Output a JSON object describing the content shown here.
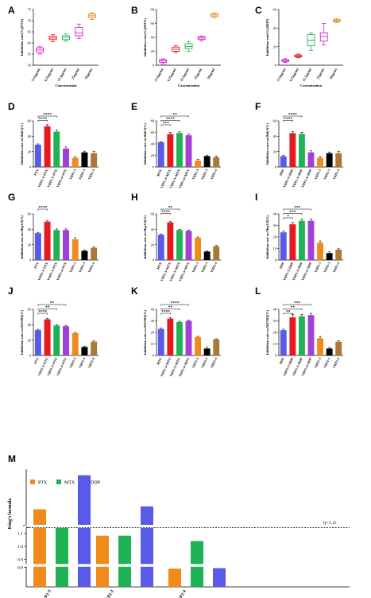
{
  "colors": {
    "orange": "#f08a1a",
    "green": "#1fb356",
    "blue": "#5a5ae8",
    "red": "#e8191d",
    "purple": "#a13fd6",
    "black": "#000000",
    "brown": "#a87a35",
    "magenta": "#d61fd6",
    "tan": "#e08a1f"
  },
  "panel_letters": [
    "A",
    "B",
    "C",
    "D",
    "E",
    "F",
    "G",
    "H",
    "I",
    "J",
    "K",
    "L",
    "M"
  ],
  "chart_data": [
    {
      "panel": "A",
      "type": "box",
      "categories": [
        "3.13μg/mL",
        "6.25μg/mL",
        "12.5μg/mL",
        "25μg/mL",
        "50μg/mL"
      ],
      "ylabel": "Inhibition rate(%)(PTX)",
      "xlabel": "Concentration",
      "ylim": [
        50,
        75
      ],
      "yticks": [
        50,
        55,
        60,
        65,
        70,
        75
      ],
      "boxes": [
        {
          "min": 55.0,
          "q1": 55.8,
          "median": 56.8,
          "q3": 57.8,
          "max": 58.3
        },
        {
          "min": 60.5,
          "q1": 61.5,
          "median": 62.2,
          "q3": 63.0,
          "max": 63.8
        },
        {
          "min": 60.8,
          "q1": 61.5,
          "median": 62.5,
          "q3": 63.2,
          "max": 64.0
        },
        {
          "min": 62.0,
          "q1": 63.2,
          "median": 64.5,
          "q3": 67.0,
          "max": 68.5
        },
        {
          "min": 70.5,
          "q1": 71.5,
          "median": 72.2,
          "q3": 73.0,
          "max": 73.5
        }
      ]
    },
    {
      "panel": "B",
      "type": "box",
      "categories": [
        "3.13μg/mL",
        "6.25μg/mL",
        "12.5μg/mL",
        "25μg/mL",
        "50μg/mL"
      ],
      "ylabel": "Inhibition rate(%)(MTX)",
      "xlabel": "Concentration",
      "ylim": [
        0,
        80
      ],
      "yticks": [
        0,
        20,
        40,
        60,
        80
      ],
      "boxes": [
        {
          "min": 2,
          "q1": 4,
          "median": 6,
          "q3": 8,
          "max": 9
        },
        {
          "min": 18,
          "q1": 20,
          "median": 23,
          "q3": 26,
          "max": 28
        },
        {
          "min": 20,
          "q1": 24,
          "median": 27,
          "q3": 31,
          "max": 34
        },
        {
          "min": 35,
          "q1": 37,
          "median": 39,
          "q3": 41,
          "max": 42
        },
        {
          "min": 68,
          "q1": 70,
          "median": 72,
          "q3": 74,
          "max": 75
        }
      ]
    },
    {
      "panel": "C",
      "type": "box",
      "categories": [
        "3.13μg/mL",
        "6.25μg/mL",
        "12.5μg/mL",
        "25μg/mL",
        "50μg/mL"
      ],
      "ylabel": "Inhibition rate(%)(DDP)",
      "xlabel": "Concentration",
      "ylim": [
        0,
        60
      ],
      "yticks": [
        0,
        20,
        40,
        60
      ],
      "boxes": [
        {
          "min": 3,
          "q1": 4,
          "median": 5,
          "q3": 6,
          "max": 7
        },
        {
          "min": 8,
          "q1": 9,
          "median": 10,
          "q3": 11,
          "max": 12
        },
        {
          "min": 16,
          "q1": 21,
          "median": 27,
          "q3": 33,
          "max": 35
        },
        {
          "min": 22,
          "q1": 26,
          "median": 31,
          "q3": 35,
          "max": 45
        },
        {
          "min": 46,
          "q1": 47,
          "median": 48,
          "q3": 49,
          "max": 50
        }
      ]
    },
    {
      "panel": "D",
      "type": "bar",
      "categories": [
        "PTX",
        "VRP2-3+PTX",
        "VRP2-3+PTX",
        "VRP2-4+PTX",
        "VRP2-3",
        "VRP2-3",
        "VRP2-4"
      ],
      "values": [
        29,
        53,
        46,
        24,
        12,
        19,
        18
      ],
      "errors": [
        1,
        2,
        2,
        2,
        1.5,
        1.5,
        2
      ],
      "ylabel": "Inhibition rate on Huh7(%)",
      "ylim": [
        0,
        60
      ],
      "yticks": [
        0,
        20,
        40,
        60
      ],
      "significance": [
        {
          "from": 0,
          "to": 1,
          "label": "****"
        },
        {
          "from": 0,
          "to": 2,
          "label": "****"
        }
      ]
    },
    {
      "panel": "E",
      "type": "bar",
      "categories": [
        "MTX",
        "VRP2-3+MTX",
        "VRP2-3+MTX",
        "VRP2-4+MTX",
        "VRP2-3",
        "VRP2-3",
        "VRP2-4"
      ],
      "values": [
        43,
        57,
        59,
        55,
        11,
        19,
        17
      ],
      "errors": [
        1,
        3,
        2,
        2,
        2,
        1.5,
        2
      ],
      "ylabel": "Inhibition rate on Huh7(%)",
      "ylim": [
        0,
        80
      ],
      "yticks": [
        0,
        20,
        40,
        60,
        80
      ],
      "significance": [
        {
          "from": 0,
          "to": 1,
          "label": "***"
        },
        {
          "from": 0,
          "to": 2,
          "label": "****"
        },
        {
          "from": 0,
          "to": 3,
          "label": "**"
        }
      ]
    },
    {
      "panel": "F",
      "type": "bar",
      "categories": [
        "DDP",
        "VRP2-3+DDP",
        "VRP2-3+DDP",
        "VRP2-4+DDP",
        "VRP2-3",
        "VRP2-3",
        "VRP2-4"
      ],
      "values": [
        14,
        44,
        43,
        19,
        12,
        18,
        18
      ],
      "errors": [
        1,
        2,
        2,
        2,
        1.5,
        1.5,
        2
      ],
      "ylabel": "Inhibition rate on Huh7(%)",
      "ylim": [
        0,
        60
      ],
      "yticks": [
        0,
        20,
        40,
        60
      ],
      "significance": [
        {
          "from": 0,
          "to": 1,
          "label": "****"
        },
        {
          "from": 0,
          "to": 2,
          "label": "****"
        }
      ]
    },
    {
      "panel": "G",
      "type": "bar",
      "categories": [
        "PTX",
        "VRP2-3+PTX",
        "VRP2-3+PTX",
        "VRP2-4+PTX",
        "VRP2-3",
        "VRP2-3",
        "VRP2-4"
      ],
      "values": [
        35,
        50,
        39,
        39,
        27,
        12,
        16
      ],
      "errors": [
        1,
        1,
        1.5,
        1.5,
        2,
        1,
        1
      ],
      "ylabel": "Inhibition rate on HepG2(%)",
      "ylim": [
        0,
        60
      ],
      "yticks": [
        0,
        20,
        40,
        60
      ],
      "significance": [
        {
          "from": 0,
          "to": 1,
          "label": "****"
        }
      ]
    },
    {
      "panel": "H",
      "type": "bar",
      "categories": [
        "MTX",
        "VRP2-3+MTX",
        "VRP2-3+MTX",
        "VRP2-4+MTX",
        "VRP2-3",
        "VRP2-3",
        "VRP2-4"
      ],
      "values": [
        33,
        49,
        39,
        38,
        29,
        11,
        18
      ],
      "errors": [
        1,
        1,
        1,
        1,
        1,
        1,
        1
      ],
      "ylabel": "Inhibition rate on HepG2(%)",
      "ylim": [
        0,
        60
      ],
      "yticks": [
        0,
        20,
        40,
        60
      ],
      "significance": [
        {
          "from": 0,
          "to": 1,
          "label": "****"
        },
        {
          "from": 0,
          "to": 2,
          "label": "**"
        }
      ]
    },
    {
      "panel": "I",
      "type": "bar",
      "categories": [
        "DDP",
        "VRP2-3+DDP",
        "VRP2-3+DDP",
        "VRP2-4+DDP",
        "VRP2-3",
        "VRP2-3",
        "VRP2-4"
      ],
      "values": [
        24,
        31,
        34,
        34,
        15,
        6,
        9
      ],
      "errors": [
        1,
        1.5,
        1.5,
        1.5,
        1.5,
        1,
        0.8
      ],
      "ylabel": "Inhibition rate on HepG2(%)",
      "ylim": [
        0,
        40
      ],
      "yticks": [
        0,
        10,
        20,
        30,
        40
      ],
      "significance": [
        {
          "from": 0,
          "to": 1,
          "label": "*"
        },
        {
          "from": 0,
          "to": 2,
          "label": "***"
        },
        {
          "from": 0,
          "to": 3,
          "label": "***"
        }
      ]
    },
    {
      "panel": "J",
      "type": "bar",
      "categories": [
        "PTX",
        "VRP2-3+PTX",
        "VRP2-3+PTX",
        "VRP2-4+PTX",
        "VRP2-3",
        "VRP2-3",
        "VRP2-4"
      ],
      "values": [
        33,
        47,
        39,
        38,
        29,
        11,
        18
      ],
      "errors": [
        1,
        1,
        1,
        1,
        1,
        1,
        1
      ],
      "ylabel": "Inhibition rate on Bel7402(%)",
      "ylim": [
        0,
        60
      ],
      "yticks": [
        0,
        20,
        40,
        60
      ],
      "significance": [
        {
          "from": 0,
          "to": 1,
          "label": "****"
        },
        {
          "from": 0,
          "to": 2,
          "label": "**"
        },
        {
          "from": 0,
          "to": 3,
          "label": "**"
        }
      ]
    },
    {
      "panel": "K",
      "type": "bar",
      "categories": [
        "MTX",
        "VRP2-3+MTX",
        "VRP2-3+MTX",
        "VRP2-4+MTX",
        "VRP2-3",
        "VRP2-3",
        "VRP2-4"
      ],
      "values": [
        23,
        32,
        29,
        30,
        16,
        6,
        14
      ],
      "errors": [
        0.6,
        0.8,
        0.6,
        0.6,
        0.6,
        1.5,
        0.5
      ],
      "ylabel": "Inhibition rate on Bel7402(%)",
      "ylim": [
        0,
        40
      ],
      "yticks": [
        0,
        10,
        20,
        30,
        40
      ],
      "significance": [
        {
          "from": 0,
          "to": 1,
          "label": "****"
        },
        {
          "from": 0,
          "to": 2,
          "label": "**"
        },
        {
          "from": 0,
          "to": 3,
          "label": "****"
        }
      ]
    },
    {
      "panel": "L",
      "type": "bar",
      "categories": [
        "DDP",
        "VRP2-3+DDP",
        "VRP2-3+DDP",
        "VRP2-4+DDP",
        "VRP2-3",
        "VRP2-3",
        "VRP2-4"
      ],
      "values": [
        22,
        33,
        34,
        35,
        15,
        6,
        12
      ],
      "errors": [
        0.8,
        2.5,
        1.5,
        1.5,
        1.5,
        1,
        0.8
      ],
      "ylabel": "Inhibition rate on Bel7402(%)",
      "ylim": [
        0,
        40
      ],
      "yticks": [
        0,
        10,
        20,
        30,
        40
      ],
      "significance": [
        {
          "from": 0,
          "to": 1,
          "label": "**"
        },
        {
          "from": 0,
          "to": 2,
          "label": "**"
        },
        {
          "from": 0,
          "to": 3,
          "label": "***"
        }
      ]
    },
    {
      "panel": "M",
      "type": "bar",
      "categories": [
        "VRP2-3",
        "VRP2-3",
        "VRP2-4"
      ],
      "series": [
        {
          "name": "PTX",
          "values": [
            1.38,
            1.08,
            0.75
          ]
        },
        {
          "name": "MTX",
          "values": [
            1.16,
            1.08,
            1.04
          ]
        },
        {
          "name": "DDP",
          "values": [
            1.84,
            1.42,
            0.77
          ]
        }
      ],
      "ylabel": "King's formula",
      "yticks": [
        "0.8",
        "0.9",
        "1.0",
        "1.1"
      ],
      "threshold_label": "Q=1.15",
      "legend_position": "top-left"
    }
  ]
}
